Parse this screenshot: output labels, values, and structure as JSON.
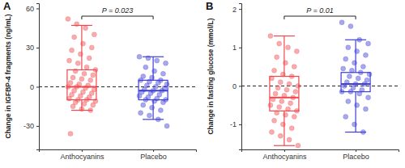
{
  "chart_data": [
    {
      "type": "box",
      "panel_label": "A",
      "ylabel": "Change in IGFBP-4 fragments (ng/mL)",
      "categories": [
        "Anthocyanins",
        "Placebo"
      ],
      "colors": [
        "#f0474c",
        "#3d3dd8"
      ],
      "ylim": [
        -48,
        64
      ],
      "yticks": [
        -30,
        0,
        30,
        60
      ],
      "reference_line": 0,
      "annotation": "P = 0.023",
      "boxes": [
        {
          "whisker_low": -18,
          "q1": -10,
          "median": 0,
          "q3": 13,
          "whisker_high": 47,
          "points": [
            52,
            48,
            45,
            40,
            38,
            33,
            30,
            28,
            25,
            22,
            20,
            18,
            15,
            13,
            12,
            10,
            9,
            7,
            6,
            5,
            3,
            2,
            1,
            0,
            0,
            -1,
            -2,
            -3,
            -4,
            -5,
            -6,
            -7,
            -8,
            -9,
            -10,
            -10,
            -11,
            -12,
            -13,
            -14,
            -15,
            -17,
            -18,
            -36
          ]
        },
        {
          "whisker_low": -25,
          "q1": -10,
          "median": -3,
          "q3": 5,
          "whisker_high": 23,
          "points": [
            23,
            22,
            20,
            18,
            15,
            12,
            10,
            8,
            7,
            5,
            5,
            4,
            3,
            2,
            1,
            0,
            -1,
            -2,
            -3,
            -3,
            -4,
            -5,
            -6,
            -7,
            -8,
            -9,
            -10,
            -10,
            -11,
            -12,
            -14,
            -16,
            -18,
            -20,
            -22,
            -25,
            -30
          ]
        }
      ]
    },
    {
      "type": "box",
      "panel_label": "B",
      "ylabel": "Change in fasting glucose (mmol/L)",
      "categories": [
        "Anthocyanins",
        "Placebo"
      ],
      "colors": [
        "#f0474c",
        "#3d3dd8"
      ],
      "ylim": [
        -1.65,
        2.15
      ],
      "yticks": [
        -1,
        0,
        1,
        2
      ],
      "reference_line": 0,
      "annotation": "P = 0.01",
      "boxes": [
        {
          "whisker_low": -1.55,
          "q1": -0.65,
          "median": -0.3,
          "q3": 0.25,
          "whisker_high": 1.3,
          "points": [
            1.3,
            1.1,
            1.0,
            0.9,
            0.75,
            0.6,
            0.5,
            0.4,
            0.3,
            0.25,
            0.2,
            0.1,
            0.05,
            0,
            -0.05,
            -0.1,
            -0.15,
            -0.2,
            -0.25,
            -0.3,
            -0.35,
            -0.4,
            -0.45,
            -0.5,
            -0.55,
            -0.6,
            -0.65,
            -0.7,
            -0.75,
            -0.8,
            -0.9,
            -1.0,
            -1.1,
            -1.2,
            -1.3,
            -1.4,
            -1.55
          ]
        },
        {
          "whisker_low": -1.2,
          "q1": -0.15,
          "median": 0.05,
          "q3": 0.35,
          "whisker_high": 1.2,
          "points": [
            1.65,
            1.55,
            1.2,
            1.1,
            1.0,
            0.9,
            0.8,
            0.7,
            0.6,
            0.5,
            0.45,
            0.4,
            0.35,
            0.3,
            0.25,
            0.2,
            0.15,
            0.1,
            0.05,
            0.05,
            0,
            -0.05,
            -0.1,
            -0.15,
            -0.15,
            -0.2,
            -0.3,
            -0.4,
            -0.5,
            -0.6,
            -0.8,
            -1.0,
            -1.2
          ]
        }
      ]
    }
  ]
}
